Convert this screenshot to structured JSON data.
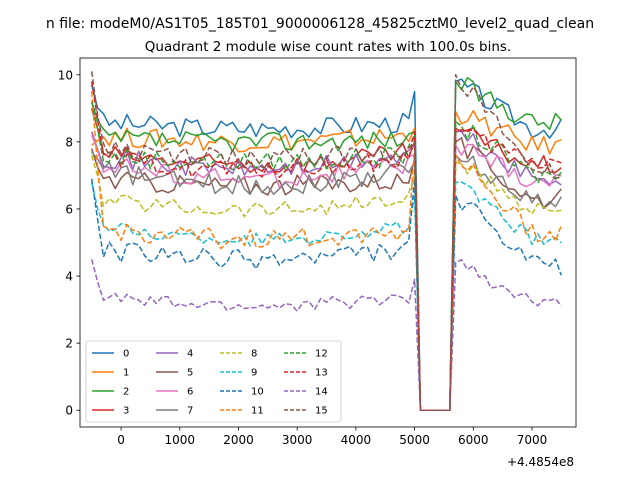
{
  "figure": {
    "suptitle": "n file: modeM0/AS1T05_185T01_9000006128_45825cztM0_level2_quad_clean"
  },
  "chart_data": {
    "type": "line",
    "title": "Quadrant 2 module wise count rates with 100.0s bins.",
    "xlabel": "",
    "ylabel": "",
    "x_offset_label": "+4.4854e8",
    "xlim": [
      -700,
      7750
    ],
    "ylim": [
      -0.5,
      10.5
    ],
    "xticks": [
      0,
      1000,
      2000,
      3000,
      4000,
      5000,
      6000,
      7000
    ],
    "yticks": [
      0,
      2,
      4,
      6,
      8,
      10
    ],
    "grid": false,
    "legend": {
      "placement": "lower-left",
      "columns": 4
    },
    "x_start": -500,
    "x_step": 100,
    "n_points": 81,
    "gap_range": [
      5000,
      5700
    ],
    "series": [
      {
        "name": "0",
        "color": "#1f77b4",
        "dash": "solid",
        "start": 9.7,
        "base": 8.6,
        "trend": -0.2,
        "jitter": 0.3,
        "pre_gap": 9.5,
        "after_peak": 9.8,
        "end": 8.4
      },
      {
        "name": "1",
        "color": "#ff7f0e",
        "dash": "solid",
        "start": 7.9,
        "base": 8.2,
        "trend": -0.2,
        "jitter": 0.3,
        "pre_gap": 8.4,
        "after_peak": 8.9,
        "end": 7.9
      },
      {
        "name": "2",
        "color": "#2ca02c",
        "dash": "solid",
        "start": 9.2,
        "base": 8.1,
        "trend": -0.1,
        "jitter": 0.3,
        "pre_gap": 8.3,
        "after_peak": 9.8,
        "end": 8.6
      },
      {
        "name": "3",
        "color": "#d62728",
        "dash": "solid",
        "start": 9.0,
        "base": 7.7,
        "trend": -0.4,
        "jitter": 0.3,
        "pre_gap": 8.0,
        "after_peak": 8.4,
        "end": 7.3
      },
      {
        "name": "4",
        "color": "#9467bd",
        "dash": "solid",
        "start": 8.3,
        "base": 7.6,
        "trend": -0.4,
        "jitter": 0.3,
        "pre_gap": 7.9,
        "after_peak": 8.3,
        "end": 6.9
      },
      {
        "name": "5",
        "color": "#8c564b",
        "dash": "solid",
        "start": 7.8,
        "base": 6.9,
        "trend": -0.2,
        "jitter": 0.3,
        "pre_gap": 7.5,
        "after_peak": 8.0,
        "end": 6.3
      },
      {
        "name": "6",
        "color": "#e377c2",
        "dash": "solid",
        "start": 8.2,
        "base": 7.4,
        "trend": -0.5,
        "jitter": 0.3,
        "pre_gap": 7.6,
        "after_peak": 7.9,
        "end": 6.8
      },
      {
        "name": "7",
        "color": "#7f7f7f",
        "dash": "solid",
        "start": 7.7,
        "base": 7.2,
        "trend": -0.5,
        "jitter": 0.3,
        "pre_gap": 7.4,
        "after_peak": 7.6,
        "end": 6.3
      },
      {
        "name": "8",
        "color": "#bcbd22",
        "dash": "dashed",
        "start": 7.6,
        "base": 6.3,
        "trend": -0.3,
        "jitter": 0.25,
        "pre_gap": 7.0,
        "after_peak": 7.4,
        "end": 6.0
      },
      {
        "name": "9",
        "color": "#17becf",
        "dash": "dashed",
        "start": 6.8,
        "base": 5.5,
        "trend": -0.4,
        "jitter": 0.2,
        "pre_gap": 6.4,
        "after_peak": 6.8,
        "end": 5.1
      },
      {
        "name": "10",
        "color": "#1f77b4",
        "dash": "dashed",
        "start": 6.9,
        "base": 4.8,
        "trend": -0.3,
        "jitter": 0.3,
        "pre_gap": 6.9,
        "after_peak": 6.4,
        "end": 4.3
      },
      {
        "name": "11",
        "color": "#ff7f0e",
        "dash": "dashed",
        "start": 9.5,
        "base": 5.4,
        "trend": -0.3,
        "jitter": 0.3,
        "pre_gap": 7.8,
        "after_peak": 7.6,
        "end": 5.3
      },
      {
        "name": "12",
        "color": "#2ca02c",
        "dash": "dashed",
        "start": 9.2,
        "base": 7.6,
        "trend": -0.2,
        "jitter": 0.3,
        "pre_gap": 8.2,
        "after_peak": 8.6,
        "end": 7.0
      },
      {
        "name": "13",
        "color": "#d62728",
        "dash": "dashed",
        "start": 9.8,
        "base": 7.5,
        "trend": -0.3,
        "jitter": 0.3,
        "pre_gap": 8.3,
        "after_peak": 8.3,
        "end": 7.4
      },
      {
        "name": "14",
        "color": "#9467bd",
        "dash": "dashed",
        "start": 4.5,
        "base": 3.4,
        "trend": -0.3,
        "jitter": 0.2,
        "pre_gap": 3.9,
        "after_peak": 4.4,
        "end": 3.2
      },
      {
        "name": "15",
        "color": "#8c564b",
        "dash": "dashed",
        "start": 10.1,
        "base": 7.8,
        "trend": -0.3,
        "jitter": 0.3,
        "pre_gap": 8.0,
        "after_peak": 10.0,
        "end": 7.2
      }
    ]
  }
}
